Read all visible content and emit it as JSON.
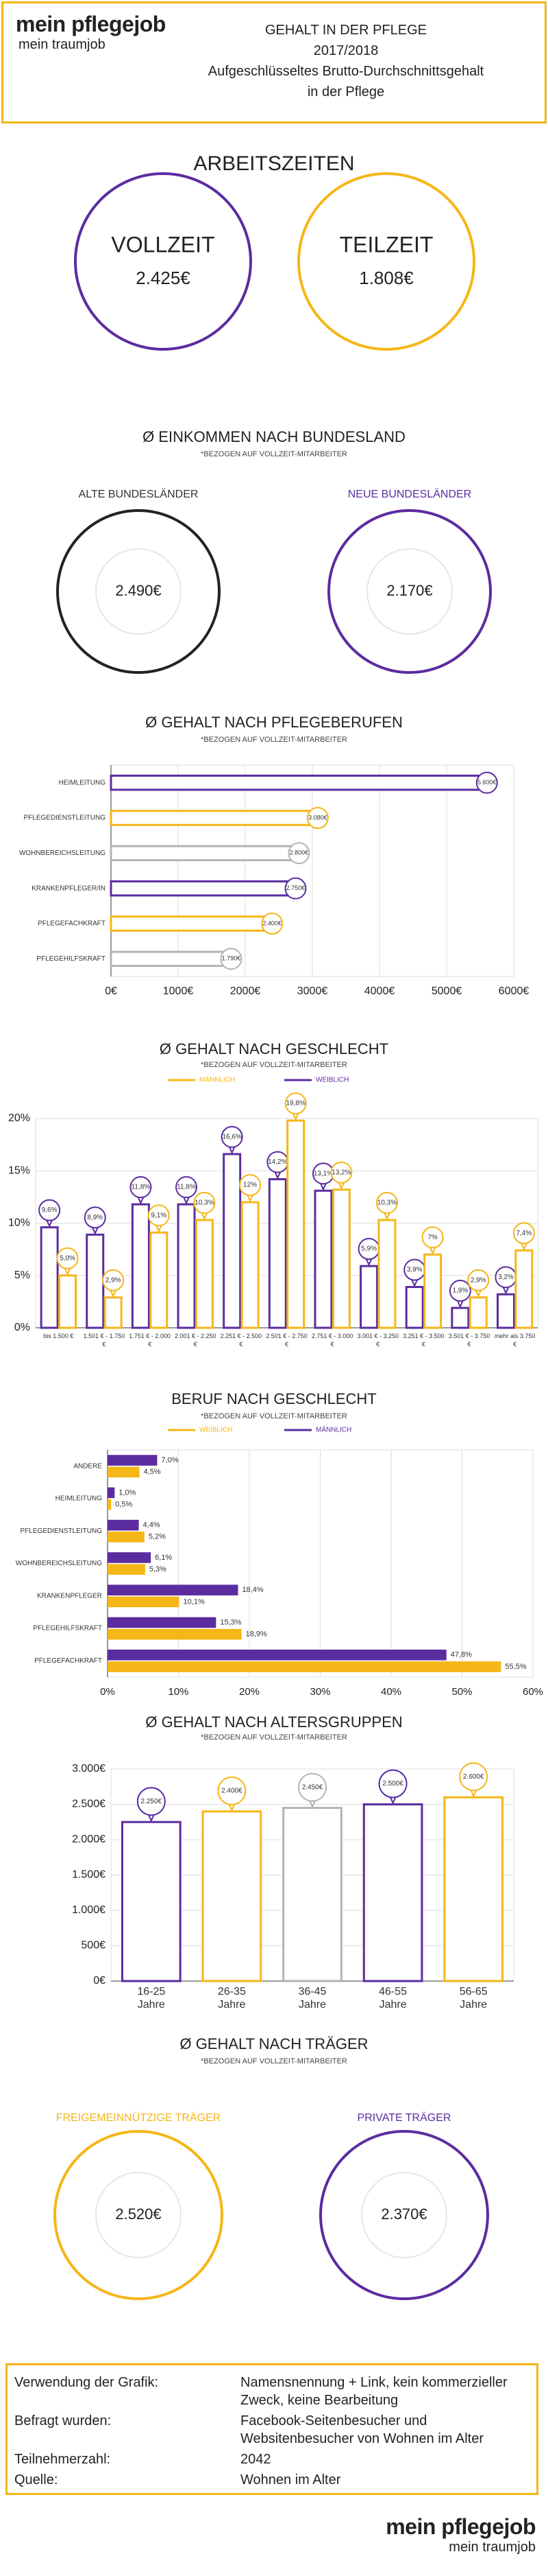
{
  "header": {
    "logo": "mein pflegejob",
    "logo_tagline": "mein traumjob",
    "title": "GEHALT IN DER PFLEGE",
    "year": "2017/2018",
    "description_lines": [
      "Aufgeschlüsseltes Brutto-Durchschnittsgehalt",
      "in der Pflege"
    ]
  },
  "working_hours": {
    "title": "ARBEITSZEITEN",
    "items": [
      {
        "label": "VOLLZEIT",
        "value": "2.425€"
      },
      {
        "label": "TEILZEIT",
        "value": "1.808€"
      }
    ]
  },
  "regions": {
    "title": "Ø EINKOMMEN NACH BUNDESLAND",
    "note": "*BEZOGEN AUF VOLLZEIT-MITARBEITER",
    "items": [
      {
        "label": "ALTE BUNDESLÄNDER",
        "value": "2.490€"
      },
      {
        "label": "NEUE BUNDESLÄNDER",
        "value": "2.170€"
      }
    ]
  },
  "chart_data": [
    {
      "type": "bar",
      "orientation": "horizontal",
      "title": "Ø GEHALT NACH PFLEGEBERUFEN",
      "subtitle": "*BEZOGEN AUF VOLLZEIT-MITARBEITER",
      "categories": [
        "HEIMLEITUNG",
        "PFLEGEDIENSTLEITUNG",
        "WOHNBEREICHSLEITUNG",
        "KRANKENPFLEGER/IN",
        "PFLEGEFACHKRAFT",
        "PFLEGEHILFSKRAFT"
      ],
      "values": [
        5600,
        3080,
        2800,
        2750,
        2400,
        1790
      ],
      "value_labels": [
        "5.600€",
        "3.080€",
        "2.800€",
        "2.750€",
        "2.400€",
        "1.790€"
      ],
      "colors": [
        "#5b2ca0",
        "#f5b617",
        "#b3b3b3",
        "#5b2ca0",
        "#f5b617",
        "#b3b3b3"
      ],
      "xlim": [
        0,
        6000
      ],
      "xticks": [
        {
          "value": 0,
          "label": "0€"
        },
        {
          "value": 1000,
          "label": "1000€"
        },
        {
          "value": 2000,
          "label": "2000€"
        },
        {
          "value": 3000,
          "label": "3000€"
        },
        {
          "value": 4000,
          "label": "4000€"
        },
        {
          "value": 5000,
          "label": "5000€"
        },
        {
          "value": 6000,
          "label": "6000€"
        }
      ],
      "grid": true
    },
    {
      "type": "bar",
      "orientation": "vertical",
      "title": "Ø GEHALT NACH GESCHLECHT",
      "subtitle": "*BEZOGEN AUF VOLLZEIT-MITARBEITER",
      "categories": [
        "bis 1.500 €",
        "1.501 € - 1.750 €",
        "1.751 € - 2.000 €",
        "2.001 € - 2.250 €",
        "2.251 € - 2.500 €",
        "2.501 € - 2.750 €",
        "2.751 € - 3.000 €",
        "3.001 € - 3.250 €",
        "3.251 € - 3.500 €",
        "3.501 € - 3.750 €",
        "mehr als 3.750 €"
      ],
      "series": [
        {
          "name": "MÄNNLICH",
          "color": "#f5b617",
          "values": [
            5.0,
            2.9,
            9.1,
            10.3,
            12,
            19.8,
            13.2,
            10.3,
            7,
            2.9,
            7.4
          ],
          "value_labels": [
            "5,0%",
            "2,9%",
            "9,1%",
            "10,3%",
            "12%",
            "19,8%",
            "13,2%",
            "10,3%",
            "7%",
            "2,9%",
            "7,4%"
          ]
        },
        {
          "name": "WEIBLICH",
          "color": "#5b2ca0",
          "values": [
            9.6,
            8.9,
            11.8,
            11.8,
            16.6,
            14.2,
            13.1,
            5.9,
            3.9,
            1.9,
            3.2
          ],
          "value_labels": [
            "9,6%",
            "8,9%",
            "11,8%",
            "11,8%",
            "16,6%",
            "14,2%",
            "13,1%",
            "5,9%",
            "3,9%",
            "1,9%",
            "3,2%"
          ]
        }
      ],
      "ylim": [
        0,
        20
      ],
      "yticks": [
        {
          "value": 0,
          "label": "0%"
        },
        {
          "value": 5,
          "label": "5%"
        },
        {
          "value": 10,
          "label": "10%"
        },
        {
          "value": 15,
          "label": "15%"
        },
        {
          "value": 20,
          "label": "20%"
        }
      ],
      "grid": true
    },
    {
      "type": "bar",
      "orientation": "horizontal",
      "title": "BERUF NACH GESCHLECHT",
      "subtitle": "*BEZOGEN AUF VOLLZEIT-MITARBEITER",
      "categories": [
        "ANDERE",
        "HEIMLEITUNG",
        "PFLEGEDIENSTLEITUNG",
        "WOHNBEREICHSLEITUNG",
        "KRANKENPFLEGER",
        "PFLEGEHILFSKRAFT",
        "PFLEGEFACHKRAFT"
      ],
      "series": [
        {
          "name": "WEIBLICH",
          "color": "#f5b617",
          "values": [
            4.5,
            0.5,
            5.2,
            5.3,
            10.1,
            18.9,
            55.5
          ],
          "value_labels": [
            "4,5%",
            "0,5%",
            "5,2%",
            "5,3%",
            "10,1%",
            "18,9%",
            "55,5%"
          ]
        },
        {
          "name": "MÄNNLICH",
          "color": "#5b2ca0",
          "values": [
            7.0,
            1.0,
            4.4,
            6.1,
            18.4,
            15.3,
            47.8
          ],
          "value_labels": [
            "7,0%",
            "1,0%",
            "4,4%",
            "6,1%",
            "18,4%",
            "15,3%",
            "47,8%"
          ]
        }
      ],
      "xlim": [
        0,
        60
      ],
      "xticks": [
        {
          "value": 0,
          "label": "0%"
        },
        {
          "value": 10,
          "label": "10%"
        },
        {
          "value": 20,
          "label": "20%"
        },
        {
          "value": 30,
          "label": "30%"
        },
        {
          "value": 40,
          "label": "40%"
        },
        {
          "value": 50,
          "label": "50%"
        },
        {
          "value": 60,
          "label": "60%"
        }
      ],
      "grid": true
    },
    {
      "type": "bar",
      "orientation": "vertical",
      "title": "Ø GEHALT NACH ALTERSGRUPPEN",
      "subtitle": "*BEZOGEN AUF VOLLZEIT-MITARBEITER",
      "categories": [
        "16-25 Jahre",
        "26-35 Jahre",
        "36-45 Jahre",
        "46-55 Jahre",
        "56-65 Jahre"
      ],
      "values": [
        2250,
        2400,
        2450,
        2500,
        2600
      ],
      "value_labels": [
        "2.250€",
        "2.400€",
        "2.450€",
        "2.500€",
        "2.600€"
      ],
      "colors": [
        "#5b2ca0",
        "#f5b617",
        "#b3b3b3",
        "#5b2ca0",
        "#f5b617"
      ],
      "ylim": [
        0,
        3000
      ],
      "yticks": [
        {
          "value": 0,
          "label": "0€"
        },
        {
          "value": 500,
          "label": "500€"
        },
        {
          "value": 1000,
          "label": "1.000€"
        },
        {
          "value": 1500,
          "label": "1.500€"
        },
        {
          "value": 2000,
          "label": "2.000€"
        },
        {
          "value": 2500,
          "label": "2.500€"
        },
        {
          "value": 3000,
          "label": "3.000€"
        }
      ],
      "grid": true
    }
  ],
  "providers": {
    "title": "Ø GEHALT NACH TRÄGER",
    "note": "*BEZOGEN AUF VOLLZEIT-MITARBEITER",
    "items": [
      {
        "label": "FREIGEMEINNÜTZIGE TRÄGER",
        "value": "2.520€"
      },
      {
        "label": "PRIVATE TRÄGER",
        "value": "2.370€"
      }
    ]
  },
  "footer": {
    "rows": [
      {
        "label": "Verwendung der Grafik:",
        "value": "Namensnennung + Link, kein kommerzieller Zweck, keine Bearbeitung"
      },
      {
        "label": "Befragt wurden:",
        "value": "Facebook-Seitenbesucher und Websitenbesucher von Wohnen im Alter"
      },
      {
        "label": "Teilnehmerzahl:",
        "value": "2042"
      },
      {
        "label": "Quelle:",
        "value": "Wohnen im Alter"
      }
    ],
    "logo": "mein pflegejob",
    "logo_tagline": "mein traumjob"
  }
}
